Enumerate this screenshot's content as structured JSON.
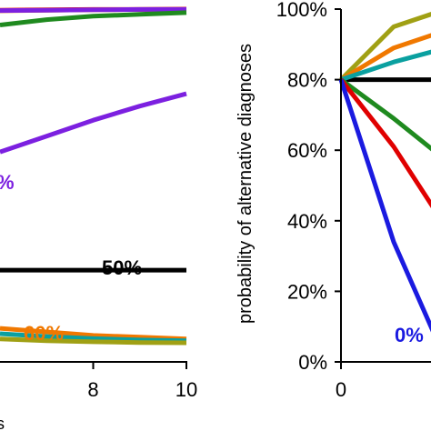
{
  "chart_data": [
    {
      "type": "line",
      "title": "",
      "xlabel": "",
      "ylabel": "",
      "x_ticks": [
        "8",
        "10"
      ],
      "x_range_visible": [
        5.9,
        10
      ],
      "y_range": [
        0,
        1
      ],
      "grid": false,
      "series": [
        {
          "color": "#e00000",
          "x": [
            6,
            7,
            8,
            9,
            10
          ],
          "y": [
            0.997,
            0.998,
            0.999,
            0.999,
            1.0
          ]
        },
        {
          "color": "#f07800",
          "x": [
            6,
            7,
            8,
            9,
            10
          ],
          "y": [
            0.995,
            0.997,
            0.998,
            0.999,
            0.999
          ]
        },
        {
          "color": "#7c20e0",
          "x": [
            6,
            7,
            8,
            9,
            10
          ],
          "y": [
            0.996,
            0.997,
            0.998,
            0.999,
            0.999
          ]
        },
        {
          "color": "#1f8a1f",
          "x": [
            6,
            7,
            8,
            9,
            10
          ],
          "y": [
            0.955,
            0.97,
            0.98,
            0.985,
            0.99
          ]
        },
        {
          "color": "#7c20e0",
          "x": [
            6,
            7,
            8,
            9,
            10
          ],
          "y": [
            0.595,
            0.64,
            0.685,
            0.725,
            0.76
          ]
        },
        {
          "color": "#000000",
          "x": [
            6,
            7,
            8,
            9,
            10
          ],
          "y": [
            0.26,
            0.26,
            0.26,
            0.26,
            0.26
          ]
        },
        {
          "color": "#f07800",
          "x": [
            6,
            7,
            8,
            9,
            10
          ],
          "y": [
            0.095,
            0.085,
            0.075,
            0.07,
            0.065
          ]
        },
        {
          "color": "#0aa0a0",
          "x": [
            6,
            7,
            8,
            9,
            10
          ],
          "y": [
            0.08,
            0.072,
            0.066,
            0.062,
            0.06
          ]
        },
        {
          "color": "#a0a014",
          "x": [
            6,
            7,
            8,
            9,
            10
          ],
          "y": [
            0.065,
            0.06,
            0.057,
            0.055,
            0.054
          ]
        }
      ],
      "annotations": [
        {
          "text": "%",
          "color": "#7c20e0"
        },
        {
          "text": "50%",
          "color": "#000000"
        },
        {
          "text": "60%",
          "color": "#f07800"
        }
      ],
      "partial_axis_label_fragment": "s"
    },
    {
      "type": "line",
      "title": "",
      "xlabel": "",
      "ylabel": "probability of alternative diagnoses",
      "y_ticks": [
        "0%",
        "20%",
        "40%",
        "60%",
        "80%",
        "100%"
      ],
      "y_tick_values": [
        0,
        20,
        40,
        60,
        80,
        100
      ],
      "x_ticks": [
        "0"
      ],
      "x_tick_values": [
        0
      ],
      "y_range": [
        0,
        100
      ],
      "x_range_visible": [
        0,
        1.65
      ],
      "grid": false,
      "series": [
        {
          "color": "#000000",
          "x": [
            0,
            1,
            2
          ],
          "y": [
            80,
            80,
            80
          ]
        },
        {
          "color": "#a0a014",
          "x": [
            0,
            1,
            2
          ],
          "y": [
            80,
            95,
            100
          ]
        },
        {
          "color": "#f07800",
          "x": [
            0,
            1,
            2
          ],
          "y": [
            80,
            89,
            94
          ]
        },
        {
          "color": "#0aa0a0",
          "x": [
            0,
            1,
            2
          ],
          "y": [
            80,
            85,
            89
          ]
        },
        {
          "color": "#1f8a1f",
          "x": [
            0,
            1,
            2
          ],
          "y": [
            80,
            69,
            57
          ]
        },
        {
          "color": "#e00000",
          "x": [
            0,
            1,
            2
          ],
          "y": [
            80,
            61,
            38
          ]
        },
        {
          "color": "#1a1ae0",
          "x": [
            0,
            1,
            2
          ],
          "y": [
            80,
            34,
            0
          ]
        }
      ],
      "annotations": [
        {
          "text": "0%",
          "color": "#1a1ae0"
        }
      ]
    }
  ]
}
